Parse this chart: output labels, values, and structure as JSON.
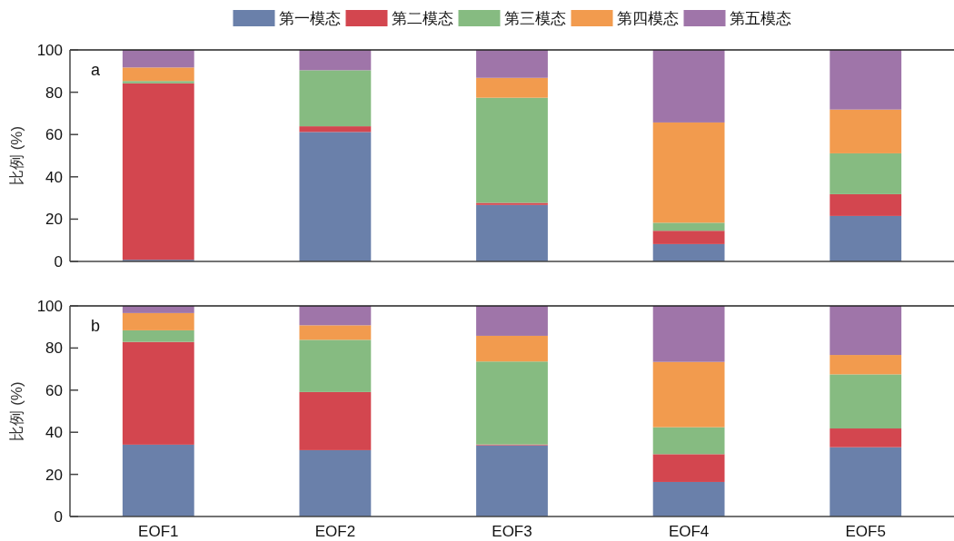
{
  "chart_data": [
    {
      "type": "bar",
      "stacked": true,
      "categories": [
        null,
        null,
        null,
        null,
        null
      ],
      "ylabel": "比例 (%)",
      "ylim": [
        0,
        100
      ],
      "yticks": [
        0,
        20,
        40,
        60,
        80,
        100
      ],
      "tick_labels": "y",
      "legend": "top",
      "annotations": [
        "a"
      ],
      "series": [
        {
          "name": "第一模态",
          "color": "#6a80aa",
          "values": [
            0.8,
            61.2,
            26.7,
            8.2,
            21.5
          ]
        },
        {
          "name": "第二模态",
          "color": "#d3464f",
          "values": [
            83.4,
            2.7,
            1.0,
            6.3,
            10.3
          ]
        },
        {
          "name": "第三模态",
          "color": "#86bb81",
          "values": [
            1.1,
            26.5,
            49.7,
            3.8,
            19.3
          ]
        },
        {
          "name": "第四模态",
          "color": "#f29b4e",
          "values": [
            6.4,
            null,
            9.4,
            47.4,
            20.7
          ]
        },
        {
          "name": "第五模态",
          "color": "#9f75a9",
          "values": [
            8.3,
            9.6,
            13.2,
            34.3,
            28.2
          ]
        }
      ]
    },
    {
      "type": "bar",
      "stacked": true,
      "categories": [
        "EOF1",
        "EOF2",
        "EOF3",
        "EOF4",
        "EOF5"
      ],
      "ylabel": "比例 (%)",
      "ylim": [
        0,
        100
      ],
      "yticks": [
        0,
        20,
        40,
        60,
        80,
        100
      ],
      "annotations": [
        "b"
      ],
      "series": [
        {
          "color": "#6a80aa",
          "values": [
            34.1,
            31.5,
            33.8,
            16.4,
            32.9
          ]
        },
        {
          "color": "#d3464f",
          "values": [
            48.8,
            27.6,
            0.4,
            13.2,
            8.9
          ]
        },
        {
          "color": "#86bb81",
          "values": [
            5.5,
            24.8,
            39.4,
            12.8,
            25.7
          ]
        },
        {
          "color": "#f29b4e",
          "values": [
            8.2,
            6.9,
            12.2,
            31.0,
            9.2
          ]
        },
        {
          "color": "#9f75a9",
          "values": [
            3.4,
            9.2,
            14.2,
            26.6,
            23.3
          ]
        }
      ]
    }
  ]
}
